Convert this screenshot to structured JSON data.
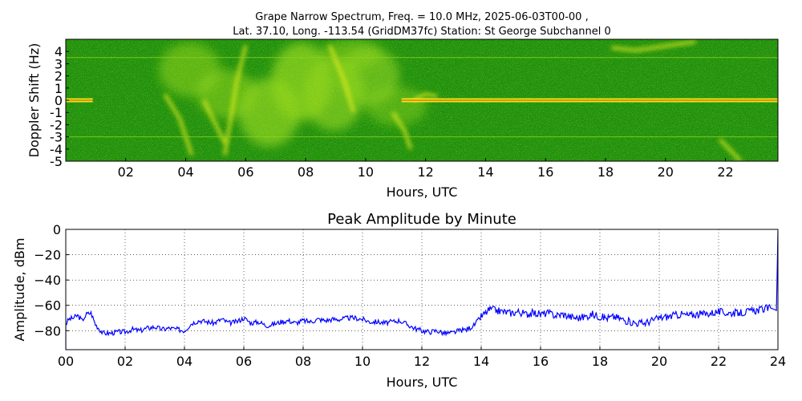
{
  "chart_data": [
    {
      "type": "heatmap",
      "title": "Grape Narrow Spectrum, Freq. = 10.0 MHz, 2025-06-03T00-00 ,",
      "subtitle": "Lat.  37.10, Long. -113.54 (GridDM37fc) Station: St George Subchannel 0",
      "xlabel": "Hours, UTC",
      "ylabel": "Doppler Shift (Hz)",
      "xlim": [
        0,
        23.75
      ],
      "ylim": [
        -5,
        5
      ],
      "x_ticks": [
        "02",
        "04",
        "06",
        "08",
        "10",
        "12",
        "14",
        "16",
        "18",
        "20",
        "22"
      ],
      "x_tick_values": [
        2,
        4,
        6,
        8,
        10,
        12,
        14,
        16,
        18,
        20,
        22
      ],
      "y_ticks": [
        "4",
        "3",
        "2",
        "1",
        "0",
        "-1",
        "-2",
        "-3",
        "-4",
        "-5"
      ],
      "y_tick_values": [
        4,
        3,
        2,
        1,
        0,
        -1,
        -2,
        -3,
        -4,
        -5
      ],
      "colors": {
        "background": "#1f8f0a",
        "mid": "#8fd31a",
        "high": "#f2f21a",
        "peak": "#f04a12"
      },
      "carrier_hz": 0,
      "disturbed_period_hours": [
        3.3,
        11.6
      ],
      "carrier_visible_hours": [
        [
          0,
          0.9
        ],
        [
          11.2,
          23.75
        ]
      ]
    },
    {
      "type": "line",
      "title": "Peak Amplitude by Minute",
      "xlabel": "Hours, UTC",
      "ylabel": "Amplitude, dBm",
      "xlim": [
        0,
        24
      ],
      "ylim": [
        -95,
        0
      ],
      "x_ticks": [
        "00",
        "02",
        "04",
        "06",
        "08",
        "10",
        "12",
        "14",
        "16",
        "18",
        "20",
        "22",
        "24"
      ],
      "x_tick_values": [
        0,
        2,
        4,
        6,
        8,
        10,
        12,
        14,
        16,
        18,
        20,
        22,
        24
      ],
      "y_ticks": [
        "0",
        "−20",
        "−40",
        "−60",
        "−80"
      ],
      "y_tick_values": [
        0,
        -20,
        -40,
        -60,
        -80
      ],
      "grid": true,
      "line_color": "#0000ff",
      "series": [
        {
          "x": [
            0,
            0.1,
            0.25,
            0.4,
            0.55,
            0.7,
            0.85,
            1.0,
            1.25,
            1.5,
            1.75,
            2.0,
            2.25,
            2.5,
            2.75,
            3.0,
            3.25,
            3.5,
            3.75,
            4.0,
            4.25,
            4.5,
            4.75,
            5.0,
            5.25,
            5.5,
            5.75,
            6.0,
            6.25,
            6.5,
            6.75,
            7.0,
            7.25,
            7.5,
            7.75,
            8.0,
            8.25,
            8.5,
            8.75,
            9.0,
            9.25,
            9.5,
            9.75,
            10.0,
            10.25,
            10.5,
            10.75,
            11.0,
            11.25,
            11.5,
            11.75,
            12.0,
            12.25,
            12.5,
            12.75,
            13.0,
            13.25,
            13.5,
            13.75,
            14.0,
            14.15,
            14.3,
            14.5,
            14.75,
            15.0,
            15.25,
            15.5,
            15.75,
            16.0,
            16.25,
            16.5,
            16.75,
            17.0,
            17.25,
            17.5,
            17.75,
            18.0,
            18.25,
            18.5,
            18.75,
            19.0,
            19.25,
            19.5,
            19.75,
            20.0,
            20.25,
            20.5,
            20.75,
            21.0,
            21.25,
            21.5,
            21.75,
            22.0,
            22.25,
            22.5,
            22.75,
            23.0,
            23.25,
            23.5,
            23.75,
            23.95,
            24.0
          ],
          "values": [
            -75,
            -71,
            -70,
            -68,
            -72,
            -67,
            -66,
            -75,
            -82,
            -82,
            -81,
            -81,
            -79,
            -80,
            -78,
            -77,
            -79,
            -78,
            -79,
            -80,
            -74,
            -72,
            -73,
            -74,
            -71,
            -74,
            -73,
            -70,
            -74,
            -73,
            -76,
            -75,
            -73,
            -72,
            -74,
            -72,
            -73,
            -71,
            -72,
            -71,
            -71,
            -70,
            -70,
            -71,
            -73,
            -73,
            -74,
            -73,
            -72,
            -75,
            -78,
            -80,
            -81,
            -80,
            -82,
            -82,
            -80,
            -79,
            -76,
            -69,
            -66,
            -63,
            -64,
            -65,
            -66,
            -65,
            -67,
            -66,
            -67,
            -66,
            -68,
            -67,
            -69,
            -70,
            -69,
            -67,
            -69,
            -70,
            -69,
            -71,
            -73,
            -74,
            -74,
            -72,
            -70,
            -69,
            -68,
            -67,
            -68,
            -67,
            -67,
            -66,
            -65,
            -66,
            -66,
            -66,
            -65,
            -64,
            -63,
            -62,
            -64,
            -1
          ]
        }
      ]
    }
  ]
}
